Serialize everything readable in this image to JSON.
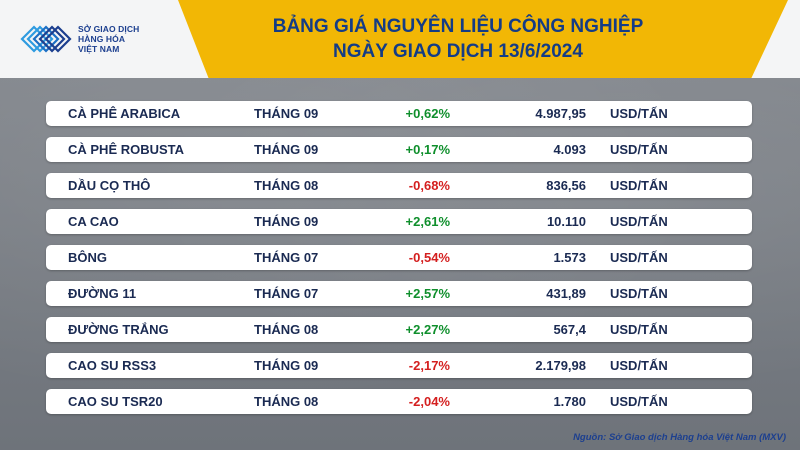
{
  "logo": {
    "text_lines": [
      "SỞ GIAO DỊCH",
      "HÀNG HÓA",
      "VIỆT NAM"
    ]
  },
  "title": {
    "line1": "BẢNG GIÁ NGUYÊN LIỆU CÔNG NGHIỆP",
    "line2": "NGÀY GIAO DỊCH 13/6/2024"
  },
  "colors": {
    "header_band": "#f2b705",
    "title_text": "#143c86",
    "positive": "#0f8f2c",
    "negative": "#d41f1f"
  },
  "rows": [
    {
      "name": "CÀ PHÊ ARABICA",
      "month": "THÁNG 09",
      "change": "+0,62%",
      "direction": "up",
      "price": "4.987,95",
      "unit": "USD/TẤN"
    },
    {
      "name": "CÀ PHÊ ROBUSTA",
      "month": "THÁNG 09",
      "change": "+0,17%",
      "direction": "up",
      "price": "4.093",
      "unit": "USD/TẤN"
    },
    {
      "name": "DẦU CỌ THÔ",
      "month": "THÁNG 08",
      "change": "-0,68%",
      "direction": "down",
      "price": "836,56",
      "unit": "USD/TẤN"
    },
    {
      "name": "CA CAO",
      "month": "THÁNG 09",
      "change": "+2,61%",
      "direction": "up",
      "price": "10.110",
      "unit": "USD/TẤN"
    },
    {
      "name": "BÔNG",
      "month": "THÁNG 07",
      "change": "-0,54%",
      "direction": "down",
      "price": "1.573",
      "unit": "USD/TẤN"
    },
    {
      "name": "ĐƯỜNG 11",
      "month": "THÁNG 07",
      "change": "+2,57%",
      "direction": "up",
      "price": "431,89",
      "unit": "USD/TẤN"
    },
    {
      "name": "ĐƯỜNG TRẮNG",
      "month": "THÁNG 08",
      "change": "+2,27%",
      "direction": "up",
      "price": "567,4",
      "unit": "USD/TẤN"
    },
    {
      "name": "CAO SU RSS3",
      "month": "THÁNG 09",
      "change": "-2,17%",
      "direction": "down",
      "price": "2.179,98",
      "unit": "USD/TẤN"
    },
    {
      "name": "CAO SU TSR20",
      "month": "THÁNG 08",
      "change": "-2,04%",
      "direction": "down",
      "price": "1.780",
      "unit": "USD/TẤN"
    }
  ],
  "source": "Nguồn: Sở Giao dịch Hàng hóa Việt Nam (MXV)"
}
